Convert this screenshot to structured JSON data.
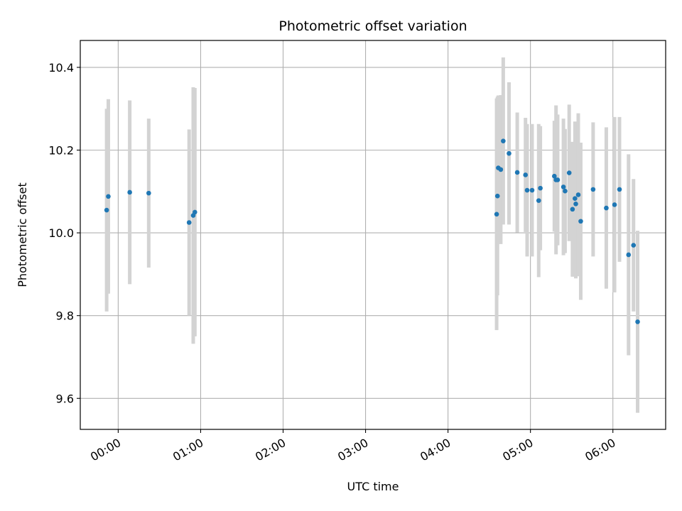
{
  "chart_data": {
    "type": "scatter",
    "title": "Photometric offset variation",
    "xlabel": "UTC time",
    "ylabel": "Photometric offset",
    "grid": true,
    "xlim_hours": [
      -0.46,
      6.64
    ],
    "ylim": [
      9.525,
      10.465
    ],
    "xticks": [
      {
        "hours": 0,
        "label": "00:00"
      },
      {
        "hours": 1,
        "label": "01:00"
      },
      {
        "hours": 2,
        "label": "02:00"
      },
      {
        "hours": 3,
        "label": "03:00"
      },
      {
        "hours": 4,
        "label": "04:00"
      },
      {
        "hours": 5,
        "label": "05:00"
      },
      {
        "hours": 6,
        "label": "06:00"
      }
    ],
    "yticks": [
      {
        "value": 9.6,
        "label": "9.6"
      },
      {
        "value": 9.8,
        "label": "9.8"
      },
      {
        "value": 10.0,
        "label": "10.0"
      },
      {
        "value": 10.2,
        "label": "10.2"
      },
      {
        "value": 10.4,
        "label": "10.4"
      }
    ],
    "colors": {
      "point": "#1f77b4",
      "errorbar": "#d3d3d3",
      "grid": "#b0b0b0"
    },
    "points": [
      {
        "t": -0.14,
        "y": 10.055,
        "err": 0.245
      },
      {
        "t": -0.12,
        "y": 10.088,
        "err": 0.235
      },
      {
        "t": 0.14,
        "y": 10.098,
        "err": 0.222
      },
      {
        "t": 0.37,
        "y": 10.096,
        "err": 0.18
      },
      {
        "t": 0.86,
        "y": 10.025,
        "err": 0.225
      },
      {
        "t": 0.91,
        "y": 10.042,
        "err": 0.31
      },
      {
        "t": 0.93,
        "y": 10.05,
        "err": 0.3
      },
      {
        "t": 4.59,
        "y": 10.045,
        "err": 0.28
      },
      {
        "t": 4.6,
        "y": 10.089,
        "err": 0.24
      },
      {
        "t": 4.61,
        "y": 10.157,
        "err": 0.175
      },
      {
        "t": 4.64,
        "y": 10.153,
        "err": 0.18
      },
      {
        "t": 4.67,
        "y": 10.222,
        "err": 0.202
      },
      {
        "t": 4.74,
        "y": 10.192,
        "err": 0.172
      },
      {
        "t": 4.84,
        "y": 10.146,
        "err": 0.145
      },
      {
        "t": 4.94,
        "y": 10.14,
        "err": 0.138
      },
      {
        "t": 4.96,
        "y": 10.103,
        "err": 0.16
      },
      {
        "t": 5.02,
        "y": 10.103,
        "err": 0.16
      },
      {
        "t": 5.1,
        "y": 10.078,
        "err": 0.185
      },
      {
        "t": 5.12,
        "y": 10.108,
        "err": 0.15
      },
      {
        "t": 5.29,
        "y": 10.137,
        "err": 0.134
      },
      {
        "t": 5.31,
        "y": 10.128,
        "err": 0.18
      },
      {
        "t": 5.33,
        "y": 10.128,
        "err": 0.158
      },
      {
        "t": 5.4,
        "y": 10.111,
        "err": 0.165
      },
      {
        "t": 5.42,
        "y": 10.101,
        "err": 0.15
      },
      {
        "t": 5.47,
        "y": 10.145,
        "err": 0.165
      },
      {
        "t": 5.51,
        "y": 10.057,
        "err": 0.163
      },
      {
        "t": 5.54,
        "y": 10.083,
        "err": 0.186
      },
      {
        "t": 5.55,
        "y": 10.07,
        "err": 0.18
      },
      {
        "t": 5.58,
        "y": 10.092,
        "err": 0.197
      },
      {
        "t": 5.61,
        "y": 10.028,
        "err": 0.19
      },
      {
        "t": 5.76,
        "y": 10.105,
        "err": 0.162
      },
      {
        "t": 5.92,
        "y": 10.06,
        "err": 0.195
      },
      {
        "t": 6.02,
        "y": 10.068,
        "err": 0.212
      },
      {
        "t": 6.08,
        "y": 10.105,
        "err": 0.175
      },
      {
        "t": 6.19,
        "y": 9.947,
        "err": 0.243
      },
      {
        "t": 6.25,
        "y": 9.97,
        "err": 0.16
      },
      {
        "t": 6.3,
        "y": 9.785,
        "err": 0.22
      }
    ]
  }
}
